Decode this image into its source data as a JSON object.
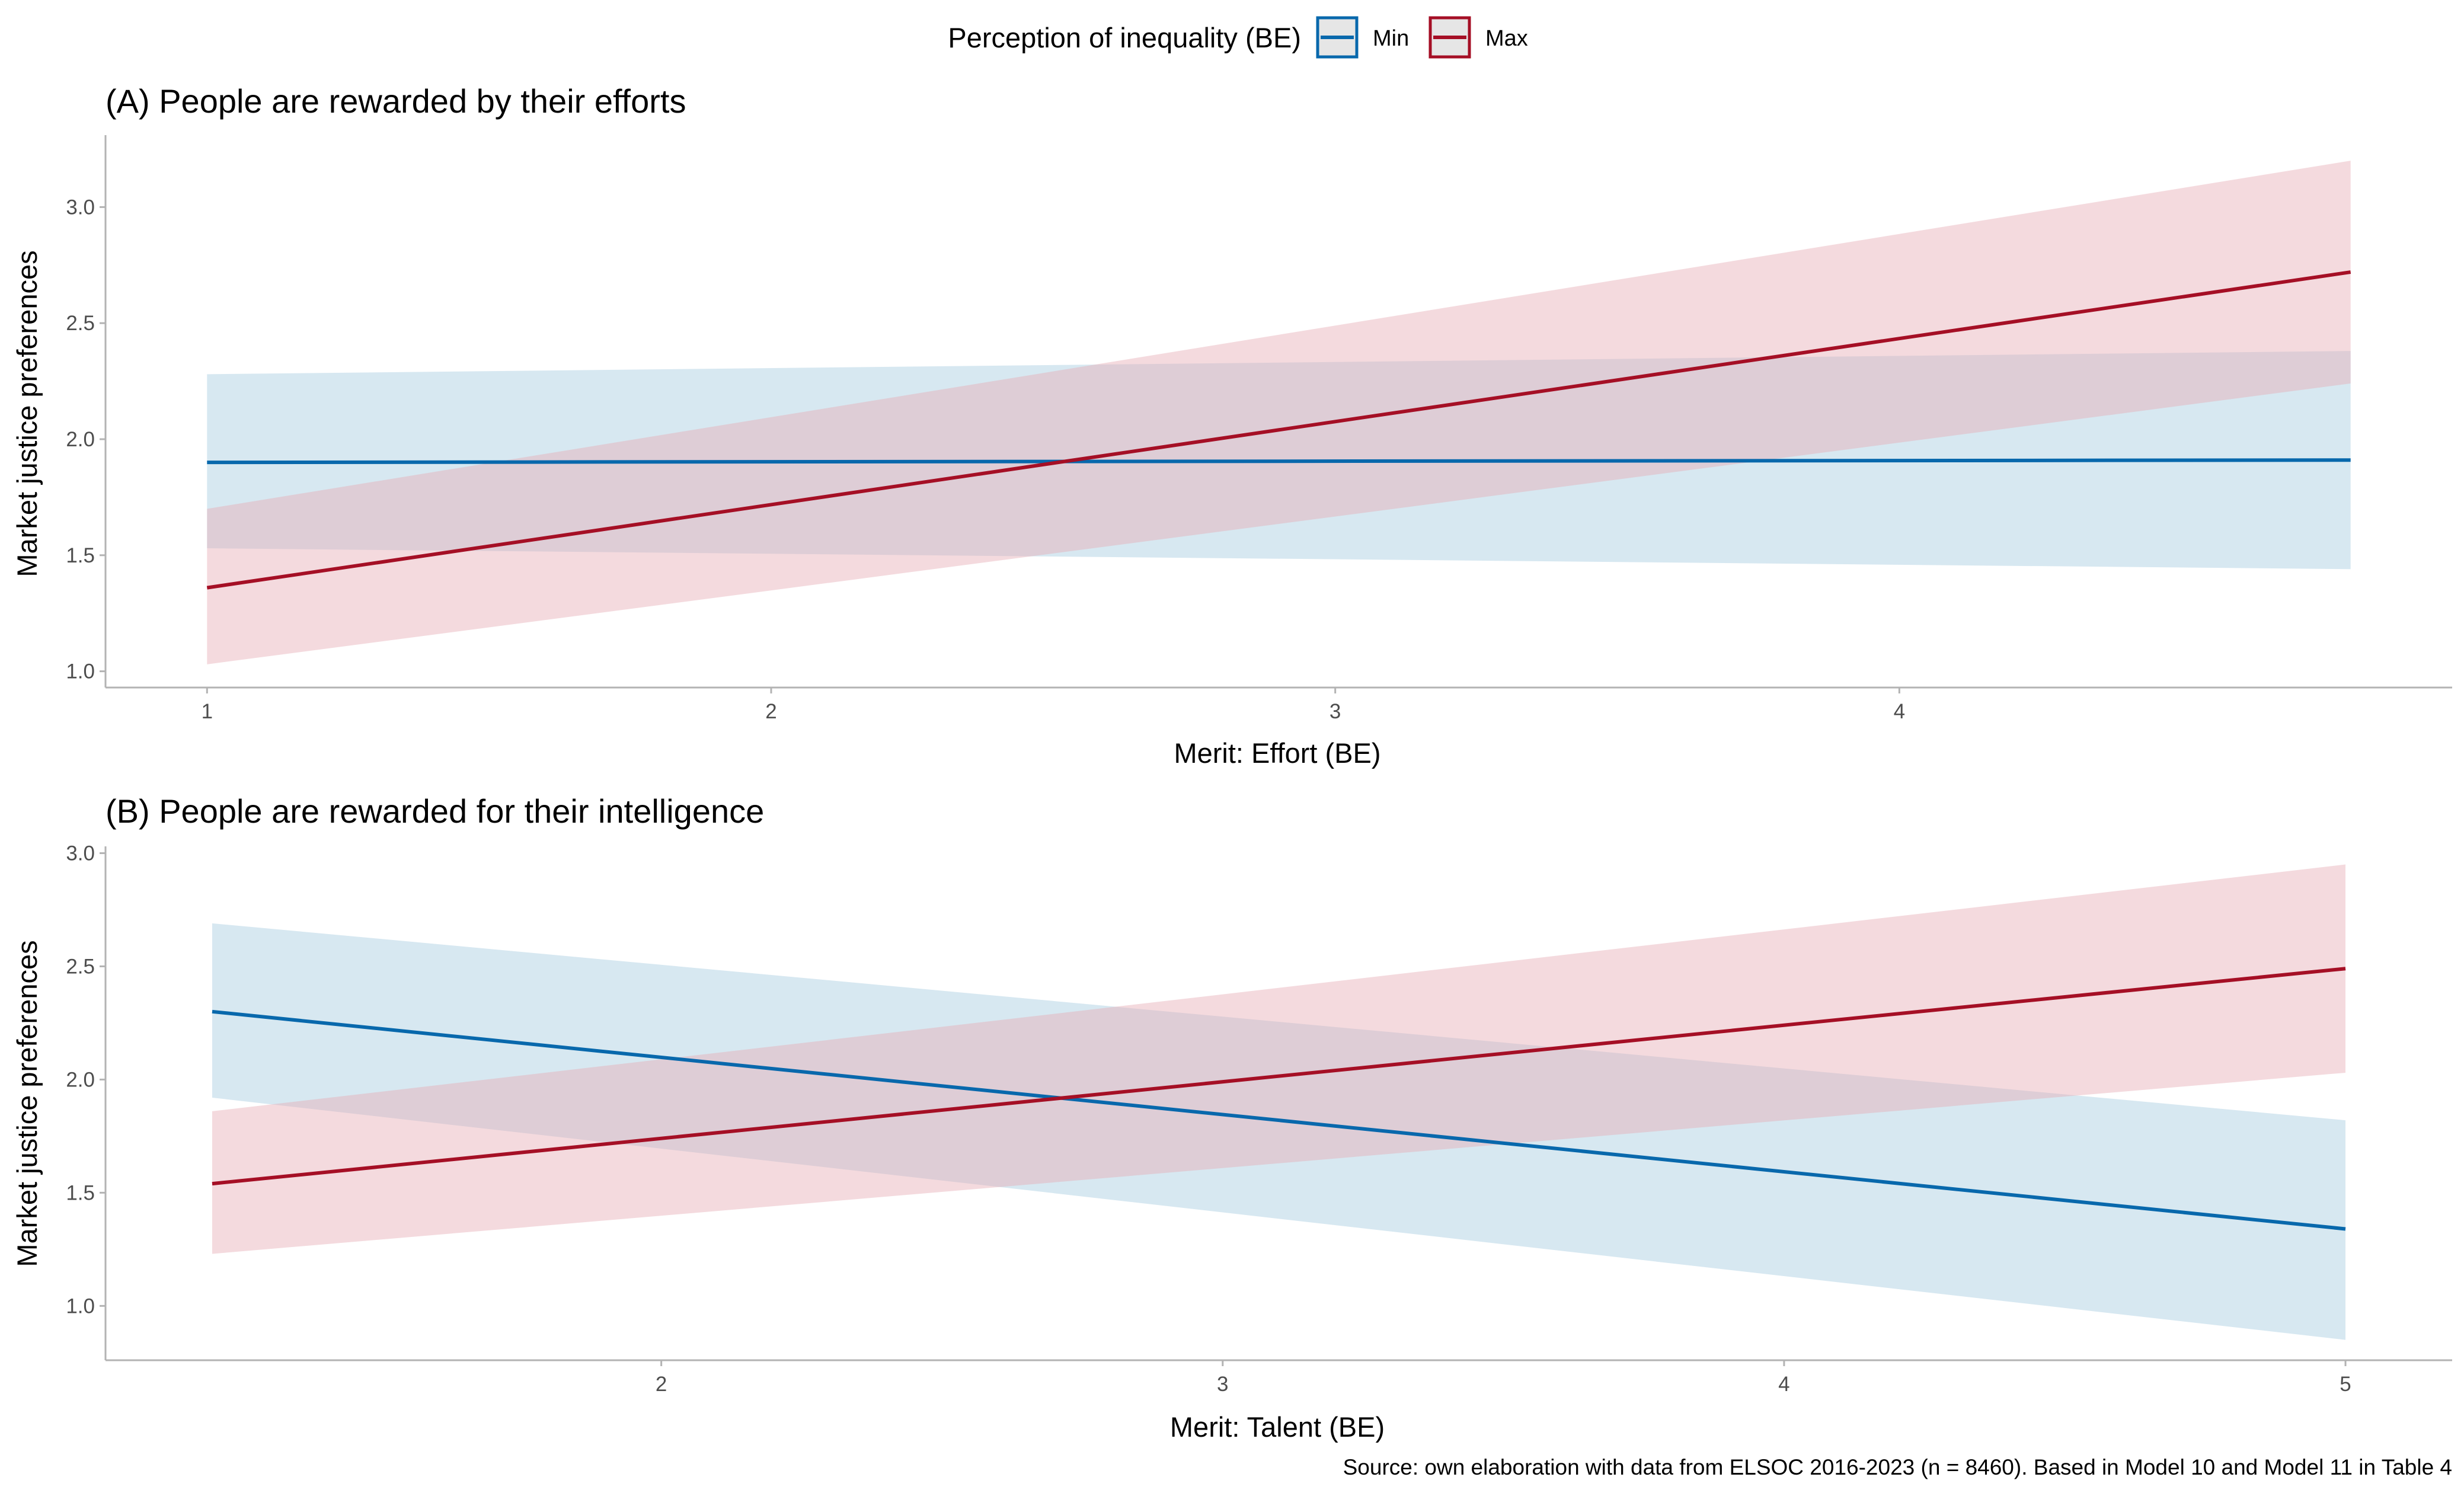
{
  "legend": {
    "title": "Perception of inequality (BE)",
    "items": [
      {
        "label": "Min",
        "color": "#0868ac"
      },
      {
        "label": "Max",
        "color": "#a50f25"
      }
    ]
  },
  "colors": {
    "min_line": "#0868ac",
    "min_band": "#a6cbe0",
    "max_line": "#a50f25",
    "max_band": "#e6aeb5"
  },
  "caption": "Source: own elaboration with data from ELSOC 2016-2023 (n = 8460). Based in Model 10 and Model 11 in Table 4",
  "chart_data": [
    {
      "type": "line",
      "title": "(A) People are rewarded by their efforts",
      "xlabel": "Merit: Effort (BE)",
      "ylabel": "Market justice preferences",
      "xlim": [
        0.82,
        4.98
      ],
      "ylim": [
        0.93,
        3.31
      ],
      "xticks": [
        1,
        2,
        3,
        4
      ],
      "yticks": [
        "1.0",
        "1.5",
        "2.0",
        "2.5",
        "3.0"
      ],
      "x": [
        1,
        4.8
      ],
      "series": [
        {
          "name": "Min",
          "values": [
            1.9,
            1.91
          ],
          "lower": [
            1.53,
            1.44
          ],
          "upper": [
            2.28,
            2.38
          ]
        },
        {
          "name": "Max",
          "values": [
            1.36,
            2.72
          ],
          "lower": [
            1.03,
            2.24
          ],
          "upper": [
            1.7,
            3.2
          ]
        }
      ]
    },
    {
      "type": "line",
      "title": "(B) People are rewarded for their intelligence",
      "xlabel": "Merit: Talent (BE)",
      "ylabel": "Market justice preferences",
      "xlim": [
        1.01,
        5.19
      ],
      "ylim": [
        0.76,
        3.03
      ],
      "xticks": [
        2,
        3,
        4,
        5
      ],
      "yticks": [
        "1.0",
        "1.5",
        "2.0",
        "2.5",
        "3.0"
      ],
      "x": [
        1.2,
        5
      ],
      "series": [
        {
          "name": "Min",
          "values": [
            2.3,
            1.34
          ],
          "lower": [
            1.92,
            0.85
          ],
          "upper": [
            2.69,
            1.82
          ]
        },
        {
          "name": "Max",
          "values": [
            1.54,
            2.49
          ],
          "lower": [
            1.23,
            2.03
          ],
          "upper": [
            1.86,
            2.95
          ]
        }
      ]
    }
  ]
}
